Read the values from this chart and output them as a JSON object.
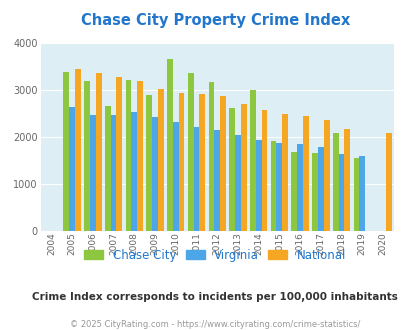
{
  "title": "Chase City Property Crime Index",
  "years": [
    2004,
    2005,
    2006,
    2007,
    2008,
    2009,
    2010,
    2011,
    2012,
    2013,
    2014,
    2015,
    2016,
    2017,
    2018,
    2019,
    2020
  ],
  "chase_city": [
    null,
    3380,
    3190,
    2650,
    3220,
    2900,
    3650,
    3370,
    3160,
    2620,
    3000,
    1920,
    1680,
    1660,
    2080,
    1560,
    null
  ],
  "virginia": [
    null,
    2630,
    2470,
    2470,
    2520,
    2420,
    2310,
    2210,
    2140,
    2040,
    1940,
    1870,
    1840,
    1780,
    1630,
    1590,
    null
  ],
  "national": [
    null,
    3440,
    3360,
    3270,
    3200,
    3030,
    2940,
    2920,
    2870,
    2700,
    2580,
    2490,
    2440,
    2370,
    2170,
    null,
    2080
  ],
  "chase_city_color": "#8dc63f",
  "virginia_color": "#4da6e8",
  "national_color": "#f5a623",
  "bg_color": "#ddeef5",
  "ylim": [
    0,
    4000
  ],
  "yticks": [
    0,
    1000,
    2000,
    3000,
    4000
  ],
  "subtitle": "Crime Index corresponds to incidents per 100,000 inhabitants",
  "footer": "© 2025 CityRating.com - https://www.cityrating.com/crime-statistics/",
  "title_color": "#2277cc",
  "subtitle_color": "#333333",
  "footer_color": "#999999",
  "legend_labels": [
    "Chase City",
    "Virginia",
    "National"
  ]
}
